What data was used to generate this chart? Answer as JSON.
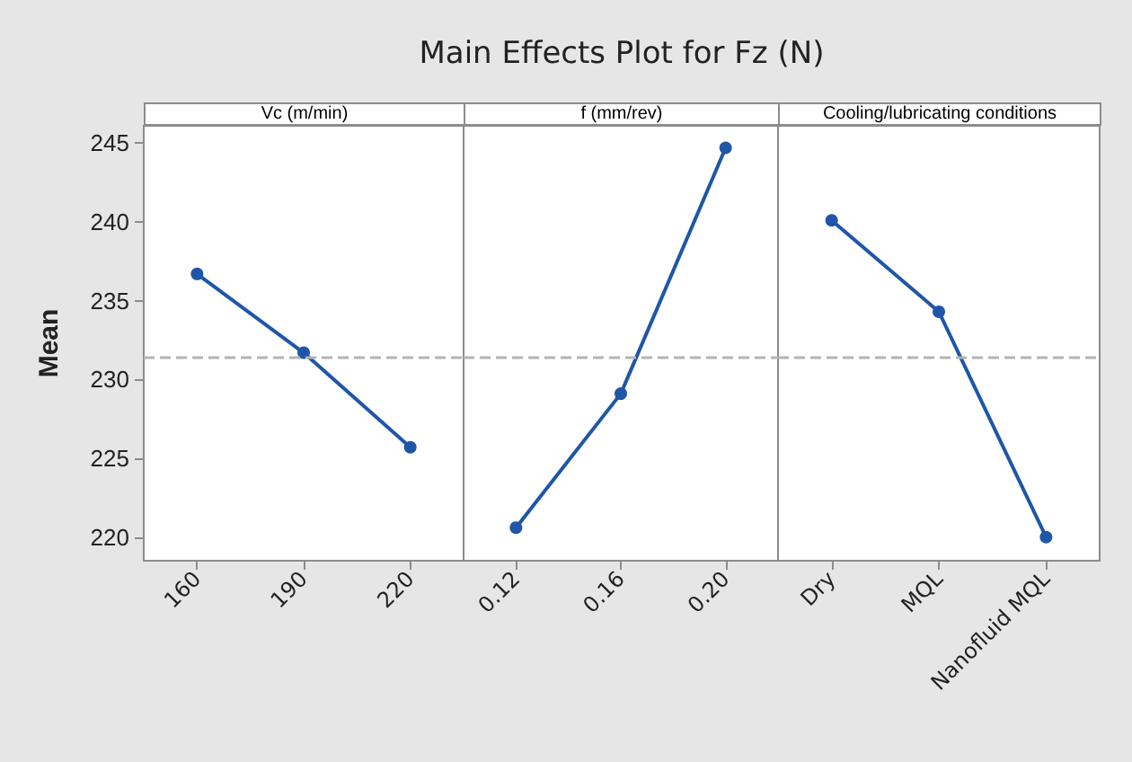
{
  "chart_data": [
    {
      "type": "line",
      "subtitle": "Vc (m/min)",
      "ylabel": "Mean",
      "categories": [
        "160",
        "190",
        "220"
      ],
      "series": [
        {
          "color": "#1f56a8",
          "values": [
            236.7,
            231.7,
            225.7
          ]
        }
      ],
      "ylim": [
        218.5,
        246.1
      ],
      "yticks": [
        220,
        225,
        230,
        235,
        240,
        245
      ],
      "marker": "circle",
      "grid": false,
      "ref_lines": [
        {
          "axis": "y",
          "value": 231.4,
          "color": "#b4b4b4",
          "line_style": "dashed"
        }
      ]
    },
    {
      "type": "line",
      "title": "Main Effects Plot for Fz (N)",
      "subtitle": "f (mm/rev)",
      "categories": [
        "0.12",
        "0.16",
        "0.20"
      ],
      "series": [
        {
          "color": "#1f56a8",
          "values": [
            220.6,
            229.1,
            244.7
          ]
        }
      ],
      "ylim": [
        218.5,
        246.1
      ],
      "yticks": [
        220,
        225,
        230,
        235,
        240,
        245
      ],
      "marker": "circle",
      "grid": false,
      "tick_labels": "x",
      "ref_lines": [
        {
          "axis": "y",
          "value": 231.4,
          "color": "#b4b4b4",
          "line_style": "dashed"
        }
      ]
    },
    {
      "type": "line",
      "subtitle": "Cooling/lubricating conditions",
      "categories": [
        "Dry",
        "MQL",
        "Nanofluid MQL"
      ],
      "series": [
        {
          "color": "#1f56a8",
          "values": [
            240.1,
            234.3,
            220.0
          ]
        }
      ],
      "ylim": [
        218.5,
        246.1
      ],
      "yticks": [
        220,
        225,
        230,
        235,
        240,
        245
      ],
      "marker": "circle",
      "grid": false,
      "tick_labels": "x",
      "ref_lines": [
        {
          "axis": "y",
          "value": 231.4,
          "color": "#b4b4b4",
          "line_style": "dashed"
        }
      ]
    }
  ]
}
